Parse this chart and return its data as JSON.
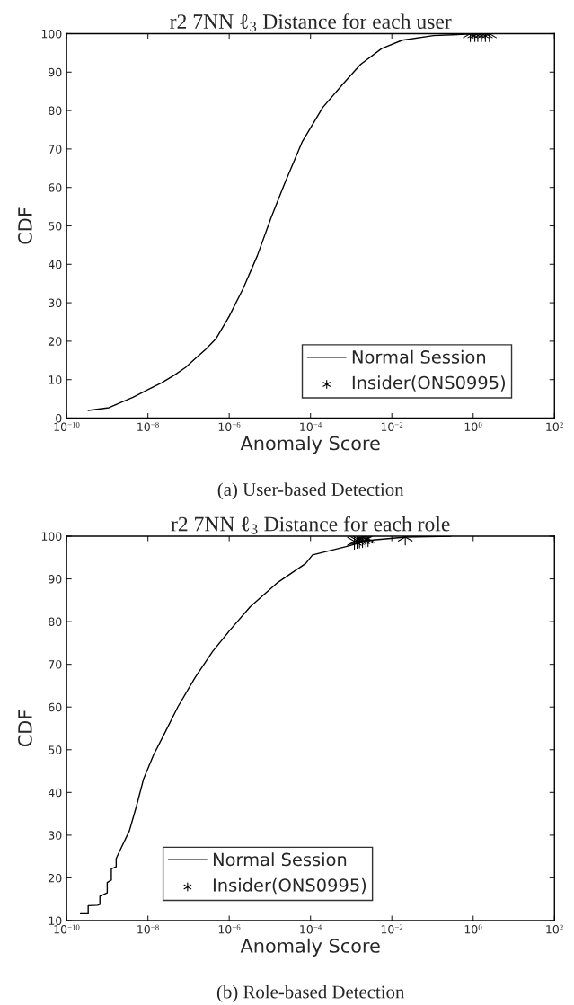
{
  "chart_data": [
    {
      "type": "line",
      "title": "r2 7NN ℓ$_{3}$ Distance for each user",
      "xlabel": "Anomaly Score",
      "ylabel": "CDF",
      "log": "x",
      "legend": "bottom right",
      "grid": false,
      "annotations": [
        "(a) User-based Detection"
      ],
      "xlim": [
        1e-10,
        100
      ],
      "ylim": [
        0,
        100
      ],
      "xticks": [
        {
          "value": 1e-10,
          "label": "10$^{−10}$"
        },
        {
          "value": 1e-08,
          "label": "10$^{−8}$"
        },
        {
          "value": 1e-06,
          "label": "10$^{−6}$"
        },
        {
          "value": 0.0001,
          "label": "10$^{−4}$"
        },
        {
          "value": 0.01,
          "label": "10$^{−2}$"
        },
        {
          "value": 1,
          "label": "10$^{0}$"
        },
        {
          "value": 100,
          "label": "10$^{2}$"
        }
      ],
      "yticks": [
        0,
        10,
        20,
        30,
        40,
        50,
        60,
        70,
        80,
        90,
        100
      ],
      "series": [
        {
          "name": "Normal Session",
          "color": "#000000",
          "marker": "none",
          "line_style": "solid",
          "x": [
            3.4e-10,
            1.1e-09,
            2.1e-09,
            4.3e-09,
            1.1e-08,
            2.2e-08,
            4.5e-08,
            8.5e-08,
            1.4e-07,
            2.6e-07,
            4.7e-07,
            1e-06,
            2.2e-06,
            4.9e-06,
            1.07e-05,
            2.3e-05,
            6.2e-05,
            0.0002,
            0.00065,
            0.0017,
            0.0056,
            0.018,
            0.105,
            0.9
          ],
          "values": [
            2,
            2.7,
            4,
            5.4,
            7.6,
            9.2,
            11.2,
            13.2,
            15.3,
            17.8,
            20.6,
            26.5,
            33.7,
            42.2,
            52.1,
            61,
            71.8,
            80.8,
            87.1,
            92,
            96.1,
            98.3,
            99.5,
            99.9
          ]
        },
        {
          "name": "Insider(ONS0995)",
          "type": "scatter",
          "color": "#000000",
          "marker": "cross",
          "x": [
            0.85,
            1.1,
            1.3,
            1.6,
            2.0,
            2.5
          ],
          "values": [
            100,
            100,
            100,
            100,
            100,
            100
          ]
        }
      ]
    },
    {
      "type": "line",
      "title": "r2 7NN ℓ$_{3}$ Distance for each role",
      "xlabel": "Anomaly Score",
      "ylabel": "CDF",
      "log": "x",
      "legend": "bottom left",
      "grid": false,
      "annotations": [
        "(b) Role-based Detection"
      ],
      "xlim": [
        1e-10,
        100
      ],
      "ylim": [
        10,
        100
      ],
      "xticks": [
        {
          "value": 1e-10,
          "label": "10$^{−10}$"
        },
        {
          "value": 1e-08,
          "label": "10$^{−8}$"
        },
        {
          "value": 1e-06,
          "label": "10$^{−6}$"
        },
        {
          "value": 0.0001,
          "label": "10$^{−4}$"
        },
        {
          "value": 0.01,
          "label": "10$^{−2}$"
        },
        {
          "value": 1,
          "label": "10$^{0}$"
        },
        {
          "value": 100,
          "label": "10$^{2}$"
        }
      ],
      "yticks": [
        10,
        20,
        30,
        40,
        50,
        60,
        70,
        80,
        90,
        100
      ],
      "series": [
        {
          "name": "Normal Session",
          "color": "#000000",
          "marker": "none",
          "line_style": "solid",
          "x": [
            2.2e-10,
            3.4e-10,
            3.4e-10,
            5.8e-10,
            6.6e-10,
            6.6e-10,
            1e-09,
            1e-09,
            1.26e-09,
            1.26e-09,
            1.66e-09,
            1.66e-09,
            2.1e-09,
            3.5e-09,
            5.2e-09,
            7.8e-09,
            1.38e-08,
            2.5e-08,
            5.5e-08,
            1.45e-07,
            3.9e-07,
            1.02e-06,
            3.3e-06,
            1.58e-05,
            7.6e-05,
            0.000112,
            0.00079,
            0.0026,
            0.022,
            0.28
          ],
          "values": [
            11.6,
            11.6,
            13.5,
            13.6,
            13.8,
            15.7,
            16.5,
            18.9,
            19.5,
            22.1,
            22.6,
            24.5,
            26.6,
            31,
            36.7,
            43.1,
            48.8,
            53.6,
            60.1,
            66.9,
            73,
            77.9,
            83.5,
            89.2,
            93.6,
            95.6,
            97.6,
            99,
            99.8,
            100
          ]
        },
        {
          "name": "Insider(ONS0995)",
          "type": "scatter",
          "color": "#000000",
          "marker": "cross",
          "x": [
            0.0012,
            0.0014,
            0.0016,
            0.0019,
            0.0023,
            0.0026,
            0.0214
          ],
          "values": [
            98.8,
            99.0,
            99.1,
            99.2,
            99.3,
            99.4,
            99.8
          ]
        }
      ]
    }
  ]
}
